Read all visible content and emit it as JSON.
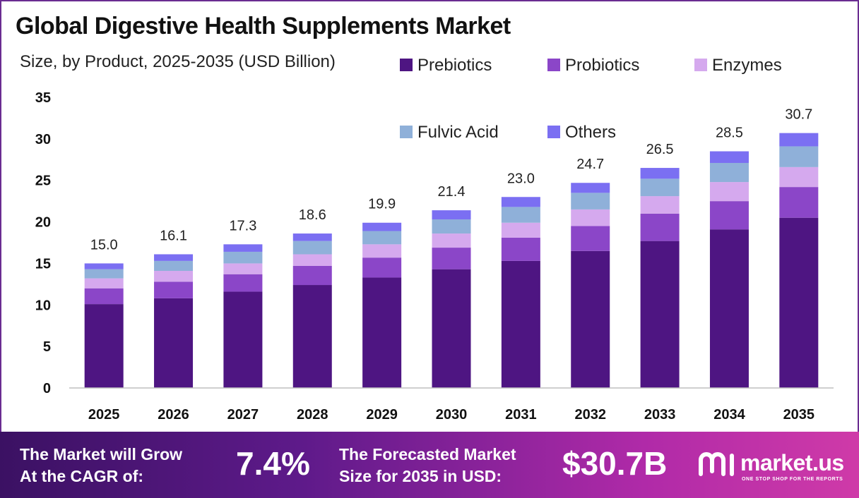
{
  "title": "Global Digestive Health Supplements Market",
  "subtitle": "Size, by Product, 2025-2035 (USD Billion)",
  "colors": {
    "Prebiotics": "#4e1582",
    "Probiotics": "#8b46c8",
    "Enzymes": "#d5a9ee",
    "Fulvic Acid": "#8fb0d9",
    "Others": "#7b6ff2"
  },
  "chart_data": {
    "type": "bar",
    "stacked": true,
    "categories": [
      "2025",
      "2026",
      "2027",
      "2028",
      "2029",
      "2030",
      "2031",
      "2032",
      "2033",
      "2034",
      "2035"
    ],
    "series": [
      {
        "name": "Prebiotics",
        "values": [
          10.1,
          10.8,
          11.6,
          12.4,
          13.3,
          14.3,
          15.3,
          16.5,
          17.7,
          19.1,
          20.5
        ]
      },
      {
        "name": "Probiotics",
        "values": [
          1.9,
          2.0,
          2.1,
          2.3,
          2.4,
          2.6,
          2.8,
          3.0,
          3.3,
          3.4,
          3.7
        ]
      },
      {
        "name": "Enzymes",
        "values": [
          1.2,
          1.3,
          1.3,
          1.4,
          1.6,
          1.7,
          1.8,
          2.0,
          2.1,
          2.3,
          2.4
        ]
      },
      {
        "name": "Fulvic Acid",
        "values": [
          1.1,
          1.2,
          1.4,
          1.6,
          1.6,
          1.7,
          1.9,
          2.0,
          2.1,
          2.3,
          2.5
        ]
      },
      {
        "name": "Others",
        "values": [
          0.7,
          0.8,
          0.9,
          0.9,
          1.0,
          1.1,
          1.2,
          1.2,
          1.3,
          1.4,
          1.6
        ]
      }
    ],
    "totals": [
      "15.0",
      "16.1",
      "17.3",
      "18.6",
      "19.9",
      "21.4",
      "23.0",
      "24.7",
      "26.5",
      "28.5",
      "30.7"
    ],
    "ylim": [
      0,
      35
    ],
    "yticks": [
      0,
      5,
      10,
      15,
      20,
      25,
      30,
      35
    ],
    "grid": false,
    "legend_position": "top-right"
  },
  "footer": {
    "cagr_label_line1": "The Market will Grow",
    "cagr_label_line2": "At the CAGR of:",
    "cagr_value": "7.4%",
    "forecast_label_line1": "The Forecasted Market",
    "forecast_label_line2": "Size for 2035 in USD:",
    "forecast_value": "$30.7B"
  },
  "logo": {
    "name": "market.us",
    "tagline": "ONE STOP SHOP FOR THE REPORTS",
    "icon": "market-us-logo-icon"
  }
}
